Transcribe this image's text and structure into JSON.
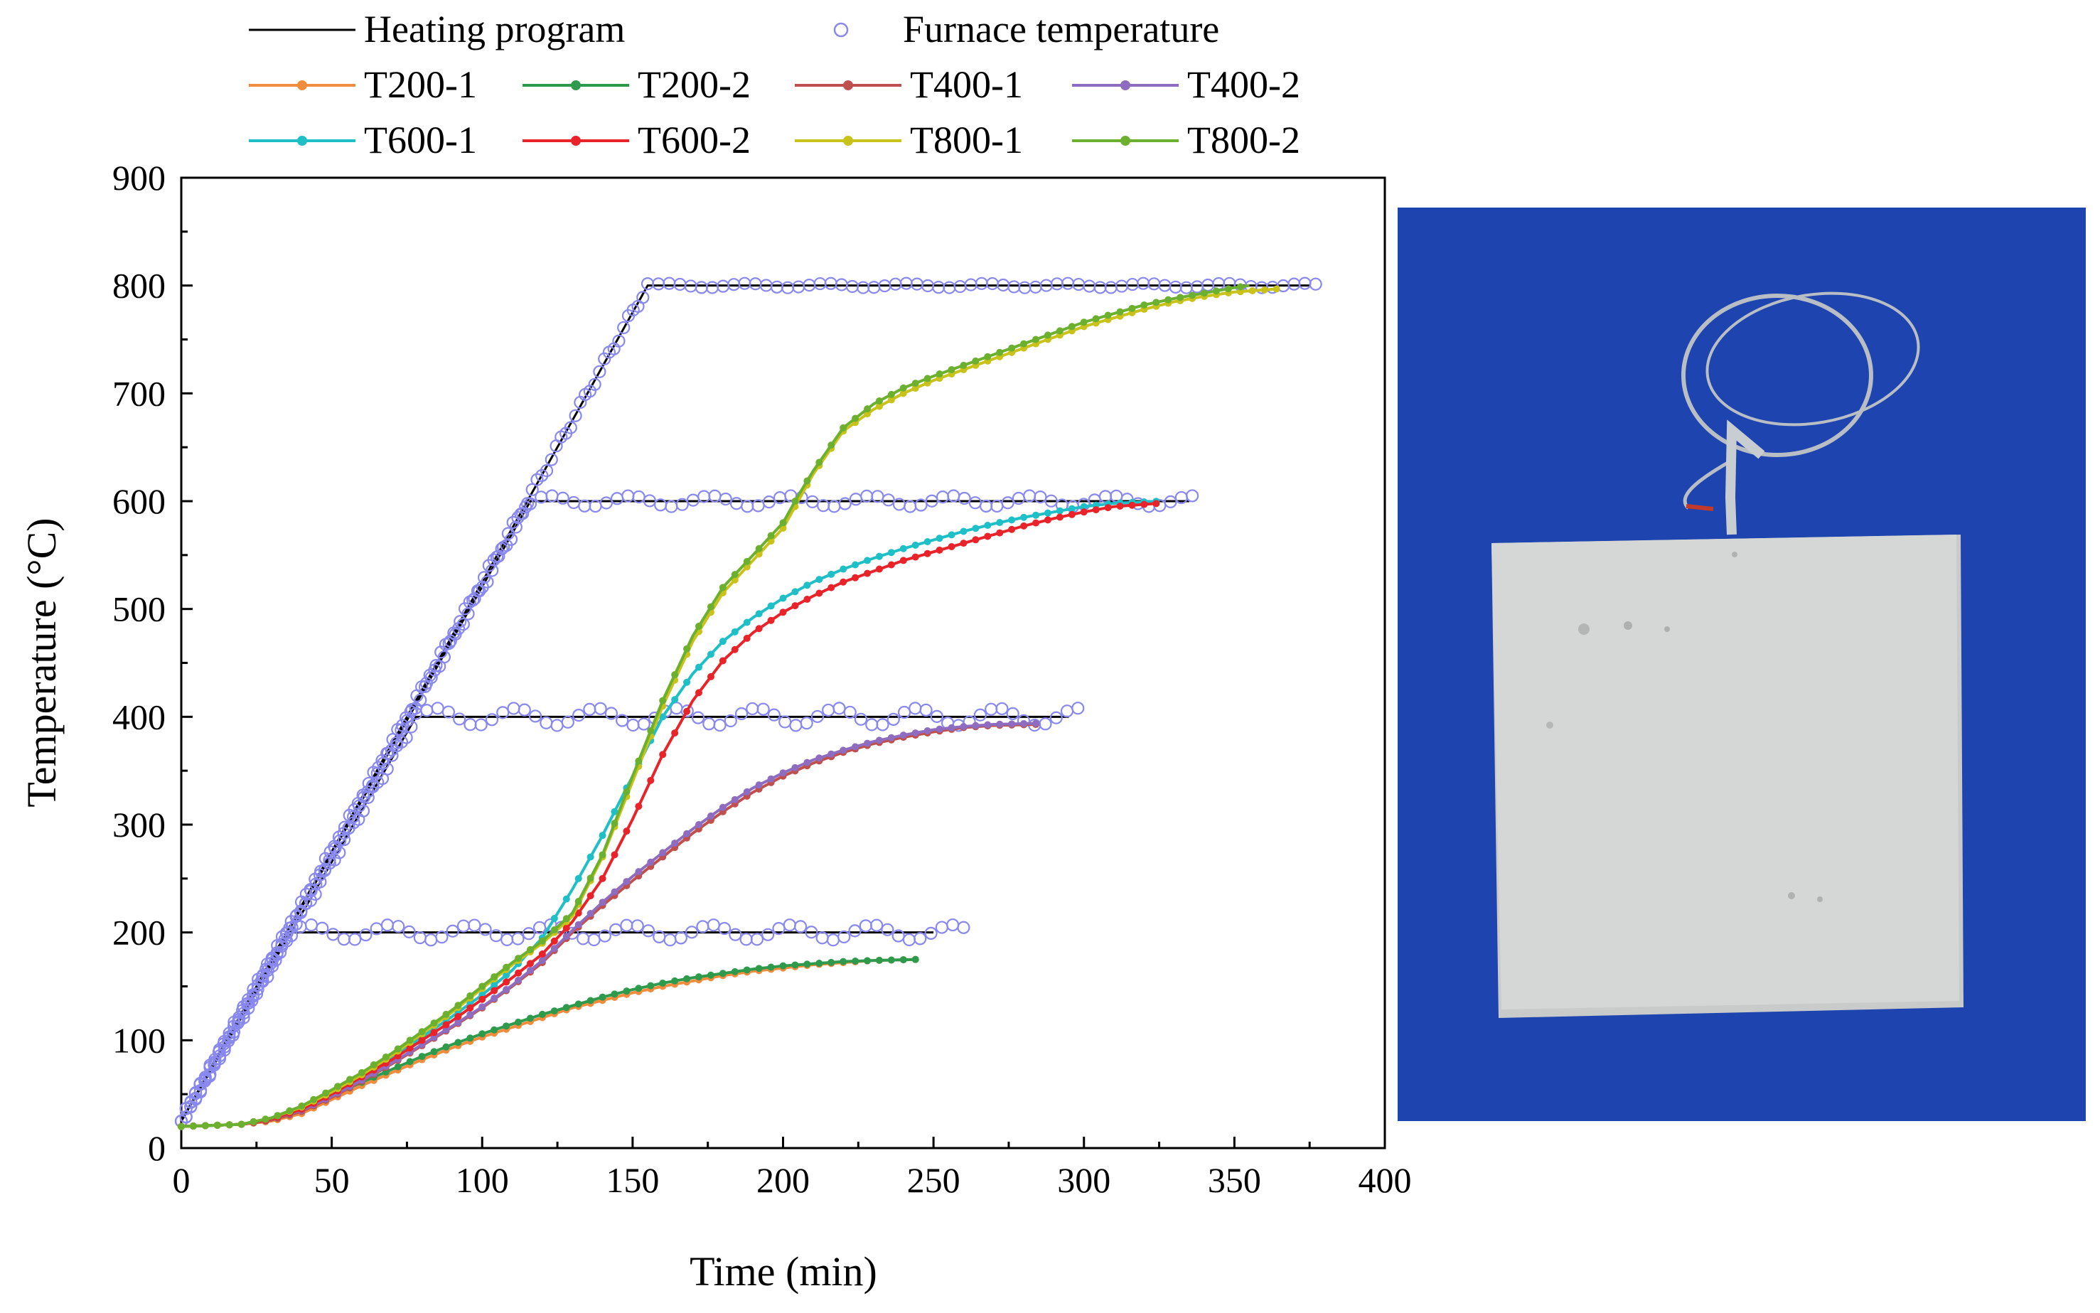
{
  "chart_data": {
    "type": "line",
    "xlabel": "Time (min)",
    "ylabel": "Temperature (°C)",
    "xlim": [
      0,
      400
    ],
    "ylim": [
      0,
      900
    ],
    "xticks": [
      0,
      50,
      100,
      150,
      200,
      250,
      300,
      350,
      400
    ],
    "yticks": [
      0,
      100,
      200,
      300,
      400,
      500,
      600,
      700,
      800,
      900
    ],
    "grid": false,
    "legend_position": "top",
    "heating_program": [
      {
        "name": "Heating program",
        "target": 200,
        "x": [
          0,
          36,
          250
        ],
        "y": [
          25,
          200,
          200
        ]
      },
      {
        "name": "Heating program",
        "target": 400,
        "x": [
          0,
          78,
          295
        ],
        "y": [
          25,
          400,
          400
        ]
      },
      {
        "name": "Heating program",
        "target": 600,
        "x": [
          0,
          116,
          335
        ],
        "y": [
          25,
          600,
          600
        ]
      },
      {
        "name": "Heating program",
        "target": 800,
        "x": [
          0,
          155,
          375
        ],
        "y": [
          25,
          800,
          800
        ]
      }
    ],
    "furnace_temperature": [
      {
        "name": "Furnace temperature",
        "target": 200,
        "ramp_end": 36,
        "x_end": 260,
        "oscillation": 7
      },
      {
        "name": "Furnace temperature",
        "target": 400,
        "ramp_end": 78,
        "x_end": 298,
        "oscillation": 8
      },
      {
        "name": "Furnace temperature",
        "target": 600,
        "ramp_end": 116,
        "x_end": 336,
        "oscillation": 5
      },
      {
        "name": "Furnace temperature",
        "target": 800,
        "ramp_end": 155,
        "x_end": 377,
        "oscillation": 2
      }
    ],
    "series": [
      {
        "name": "T200-1",
        "color": "#F08C3C",
        "x": [
          0,
          20,
          30,
          40,
          50,
          60,
          70,
          80,
          90,
          100,
          110,
          120,
          130,
          140,
          150,
          160,
          170,
          180,
          190,
          200,
          210,
          220,
          230,
          245
        ],
        "y": [
          20,
          22,
          25,
          32,
          45,
          58,
          70,
          82,
          93,
          103,
          112,
          121,
          130,
          137,
          144,
          150,
          155,
          160,
          164,
          167,
          170,
          172,
          174,
          175
        ]
      },
      {
        "name": "T200-2",
        "color": "#2E9A4C",
        "x": [
          0,
          20,
          30,
          40,
          50,
          60,
          70,
          80,
          90,
          100,
          110,
          120,
          130,
          140,
          150,
          160,
          170,
          180,
          190,
          200,
          210,
          220,
          230,
          245
        ],
        "y": [
          20,
          22,
          26,
          34,
          48,
          61,
          73,
          85,
          96,
          106,
          115,
          124,
          132,
          140,
          147,
          153,
          158,
          162,
          166,
          169,
          171,
          173,
          174,
          175
        ]
      },
      {
        "name": "T400-1",
        "color": "#C0504D",
        "x": [
          0,
          20,
          30,
          40,
          50,
          60,
          70,
          80,
          90,
          100,
          110,
          120,
          130,
          140,
          150,
          160,
          170,
          180,
          190,
          200,
          210,
          220,
          230,
          240,
          250,
          260,
          270,
          285
        ],
        "y": [
          20,
          22,
          26,
          34,
          47,
          62,
          78,
          95,
          112,
          130,
          150,
          172,
          200,
          225,
          248,
          270,
          292,
          312,
          330,
          345,
          357,
          367,
          375,
          381,
          386,
          390,
          392,
          393
        ]
      },
      {
        "name": "T400-2",
        "color": "#8E6CC0",
        "x": [
          0,
          20,
          30,
          40,
          50,
          60,
          70,
          80,
          90,
          100,
          110,
          120,
          130,
          140,
          150,
          160,
          170,
          180,
          190,
          200,
          210,
          220,
          230,
          240,
          250,
          260,
          270,
          285
        ],
        "y": [
          20,
          22,
          27,
          35,
          48,
          63,
          79,
          96,
          113,
          131,
          151,
          174,
          202,
          228,
          252,
          274,
          296,
          316,
          334,
          348,
          360,
          369,
          377,
          383,
          388,
          391,
          393,
          394
        ]
      },
      {
        "name": "T600-1",
        "color": "#1FBFC8",
        "x": [
          0,
          20,
          30,
          40,
          50,
          60,
          70,
          80,
          90,
          100,
          110,
          120,
          130,
          140,
          150,
          160,
          170,
          180,
          190,
          200,
          210,
          220,
          230,
          240,
          250,
          260,
          270,
          280,
          290,
          300,
          310,
          325
        ],
        "y": [
          20,
          22,
          28,
          38,
          52,
          68,
          85,
          103,
          122,
          142,
          165,
          195,
          240,
          290,
          345,
          400,
          440,
          470,
          492,
          510,
          525,
          537,
          547,
          556,
          564,
          572,
          579,
          585,
          590,
          595,
          598,
          600
        ]
      },
      {
        "name": "T600-2",
        "color": "#E8232A",
        "x": [
          0,
          20,
          30,
          40,
          50,
          60,
          70,
          80,
          90,
          100,
          110,
          120,
          130,
          140,
          150,
          160,
          170,
          180,
          190,
          200,
          210,
          220,
          230,
          240,
          250,
          260,
          270,
          280,
          290,
          300,
          310,
          325
        ],
        "y": [
          20,
          22,
          27,
          36,
          50,
          66,
          82,
          100,
          118,
          138,
          158,
          180,
          210,
          250,
          305,
          365,
          415,
          452,
          478,
          497,
          512,
          525,
          535,
          545,
          553,
          561,
          569,
          577,
          584,
          590,
          595,
          598
        ]
      },
      {
        "name": "T800-1",
        "color": "#C8C21A",
        "x": [
          0,
          20,
          30,
          40,
          50,
          60,
          70,
          80,
          90,
          100,
          110,
          120,
          130,
          140,
          150,
          160,
          170,
          180,
          190,
          200,
          205,
          210,
          220,
          230,
          240,
          250,
          260,
          270,
          280,
          290,
          300,
          310,
          320,
          330,
          340,
          350,
          365
        ],
        "y": [
          20,
          22,
          28,
          38,
          52,
          68,
          86,
          106,
          126,
          148,
          170,
          190,
          215,
          270,
          340,
          410,
          470,
          515,
          545,
          575,
          600,
          625,
          665,
          685,
          700,
          712,
          722,
          732,
          742,
          752,
          762,
          770,
          778,
          785,
          790,
          794,
          797
        ]
      },
      {
        "name": "T800-2",
        "color": "#6BB02E",
        "x": [
          0,
          20,
          30,
          40,
          50,
          60,
          70,
          80,
          90,
          100,
          110,
          120,
          130,
          140,
          150,
          160,
          170,
          180,
          190,
          200,
          205,
          210,
          220,
          230,
          240,
          250,
          260,
          270,
          280,
          290,
          300,
          310,
          320,
          330,
          340,
          350,
          355
        ],
        "y": [
          20,
          22,
          28,
          39,
          54,
          70,
          88,
          108,
          128,
          150,
          172,
          192,
          218,
          272,
          345,
          415,
          475,
          520,
          550,
          580,
          605,
          628,
          668,
          690,
          705,
          716,
          726,
          736,
          746,
          756,
          766,
          774,
          782,
          788,
          793,
          798,
          800
        ]
      }
    ]
  },
  "legend": {
    "heating_program": "Heating program",
    "furnace_temperature": "Furnace temperature",
    "colors": {
      "heating_program": "#000000",
      "furnace_temperature": "#8888EE"
    }
  },
  "photo": {
    "background": "#1E44B0",
    "block_color": "#D5D7D6",
    "cable_color": "#B8BEC4"
  }
}
